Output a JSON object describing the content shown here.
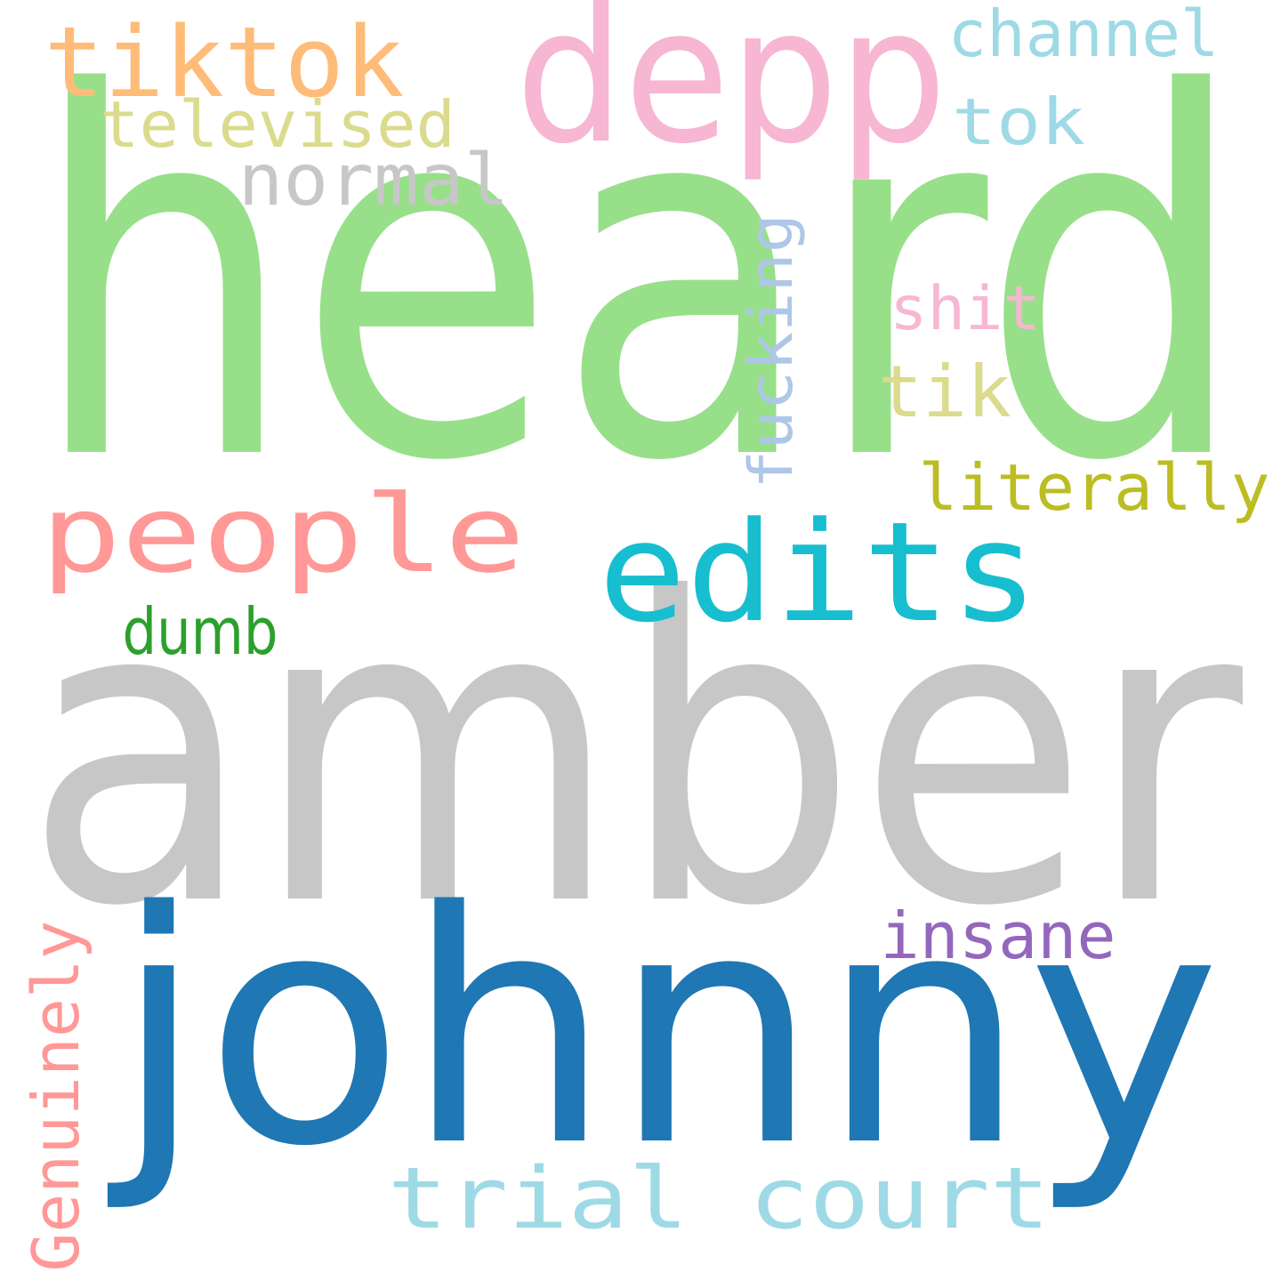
{
  "words": [
    {
      "id": "heard",
      "text": "heard",
      "color": "#98df8a"
    },
    {
      "id": "amber",
      "text": "amber",
      "color": "#c7c7c7"
    },
    {
      "id": "johnny",
      "text": "johnny",
      "color": "#1f77b4"
    },
    {
      "id": "depp",
      "text": "depp",
      "color": "#f7b6d2"
    },
    {
      "id": "tiktok",
      "text": "tiktok",
      "color": "#ffbb78"
    },
    {
      "id": "edits",
      "text": "edits",
      "color": "#17becf"
    },
    {
      "id": "people",
      "text": "people",
      "color": "#ff9896"
    },
    {
      "id": "trial-court",
      "text": "trial court",
      "color": "#9edae5"
    },
    {
      "id": "channel",
      "text": "channel",
      "color": "#9edae5"
    },
    {
      "id": "tok",
      "text": "tok",
      "color": "#9edae5"
    },
    {
      "id": "televised",
      "text": "televised",
      "color": "#dbdb8d"
    },
    {
      "id": "normal",
      "text": "normal",
      "color": "#c7c7c7"
    },
    {
      "id": "fucking",
      "text": "fucking",
      "color": "#aec7e8"
    },
    {
      "id": "shit",
      "text": "shit",
      "color": "#f7b6d2"
    },
    {
      "id": "tik",
      "text": "tik",
      "color": "#dbdb8d"
    },
    {
      "id": "literally",
      "text": "literally",
      "color": "#bcbd22"
    },
    {
      "id": "dumb",
      "text": "dumb",
      "color": "#2ca02c"
    },
    {
      "id": "insane",
      "text": "insane",
      "color": "#9467bd"
    },
    {
      "id": "genuinely",
      "text": "Genuinely",
      "color": "#ff9896"
    }
  ]
}
